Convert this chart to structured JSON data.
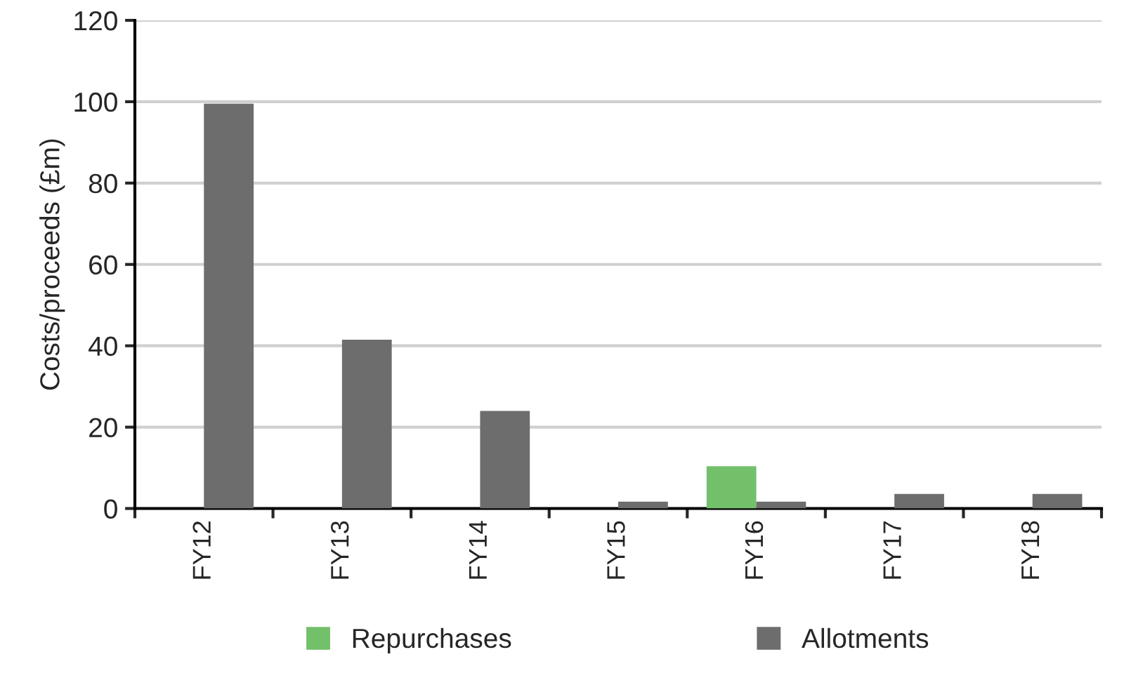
{
  "chart_data": {
    "type": "bar",
    "ylabel": "Costs/proceeds (£m)",
    "categories": [
      "FY12",
      "FY13",
      "FY14",
      "FY15",
      "FY16",
      "FY17",
      "FY18"
    ],
    "series": [
      {
        "name": "Repurchases",
        "color": "#73c06b",
        "values": [
          null,
          null,
          null,
          null,
          10.4,
          null,
          null
        ]
      },
      {
        "name": "Allotments",
        "color": "#6d6d6d",
        "values": [
          99.5,
          41.5,
          24,
          1.7,
          1.7,
          3.6,
          3.6
        ]
      }
    ],
    "ylim": [
      0,
      120
    ],
    "yticks": [
      0,
      20,
      40,
      60,
      80,
      100,
      120
    ],
    "grid": "y",
    "legend": "bottom"
  }
}
